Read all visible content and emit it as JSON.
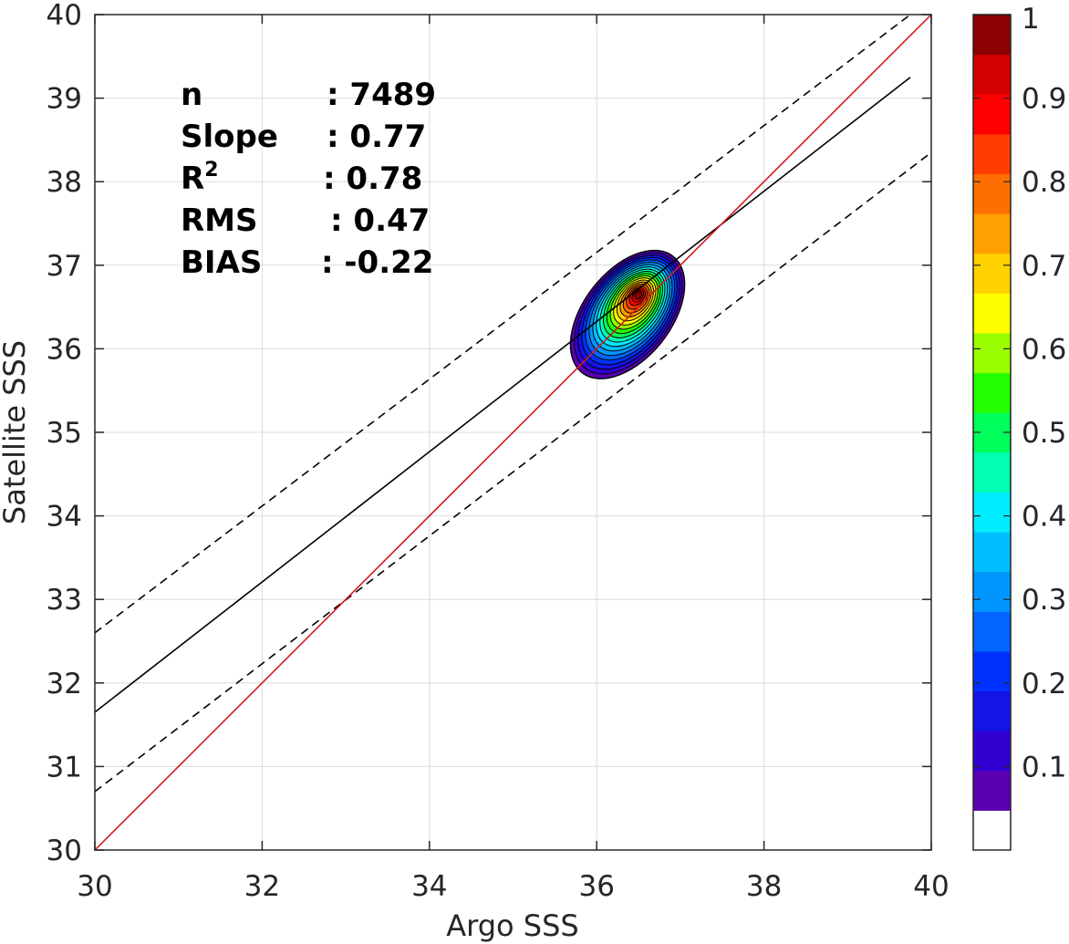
{
  "chart_data": {
    "type": "contour",
    "xlabel": "Argo SSS",
    "ylabel": "Satellite SSS",
    "xlim": [
      30,
      40
    ],
    "ylim": [
      30,
      40
    ],
    "xticks": [
      "30",
      "32",
      "34",
      "36",
      "38",
      "40"
    ],
    "yticks": [
      "30",
      "31",
      "32",
      "33",
      "34",
      "35",
      "36",
      "37",
      "38",
      "39",
      "40"
    ],
    "grid": true,
    "stats": [
      {
        "label": "n",
        "value": ": 7489"
      },
      {
        "label": "Slope",
        "value": ": 0.77"
      },
      {
        "label": "R",
        "sup": "2",
        "value": ": 0.78"
      },
      {
        "label": "RMS",
        "value": ": 0.47"
      },
      {
        "label": "BIAS",
        "value": ": -0.22"
      }
    ],
    "lines": {
      "identity": {
        "color": "#d7191c",
        "from": [
          30,
          30
        ],
        "to": [
          40,
          40
        ]
      },
      "fit": {
        "color": "#000000",
        "from": [
          30,
          31.65
        ],
        "to": [
          39.75,
          39.25
        ]
      },
      "upper_bound": {
        "color": "#000000",
        "style": "dashed",
        "from": [
          30,
          32.6
        ],
        "to": [
          39.75,
          40
        ]
      },
      "lower_bound": {
        "color": "#000000",
        "style": "dashed",
        "from": [
          30,
          30.7
        ],
        "to": [
          40,
          38.35
        ]
      }
    },
    "density_peak": {
      "x": 36.5,
      "y": 36.65
    },
    "colorbar": {
      "ticks": [
        "0.1",
        "0.2",
        "0.3",
        "0.4",
        "0.5",
        "0.6",
        "0.7",
        "0.8",
        "0.9",
        "1"
      ],
      "tick_values": [
        0.1,
        0.2,
        0.3,
        0.4,
        0.5,
        0.6,
        0.7,
        0.8,
        0.9,
        1.0
      ],
      "range": [
        0,
        1
      ],
      "colors": [
        "#ffffff",
        "#5a00b0",
        "#3200d0",
        "#1414e6",
        "#0032ff",
        "#0066ff",
        "#0096ff",
        "#00bfff",
        "#00ecff",
        "#00ffb3",
        "#00ff5a",
        "#24ff00",
        "#99ff00",
        "#ffff00",
        "#ffd200",
        "#ffa000",
        "#ff6e00",
        "#ff3c00",
        "#ff0000",
        "#d20000",
        "#8b0000"
      ]
    }
  }
}
